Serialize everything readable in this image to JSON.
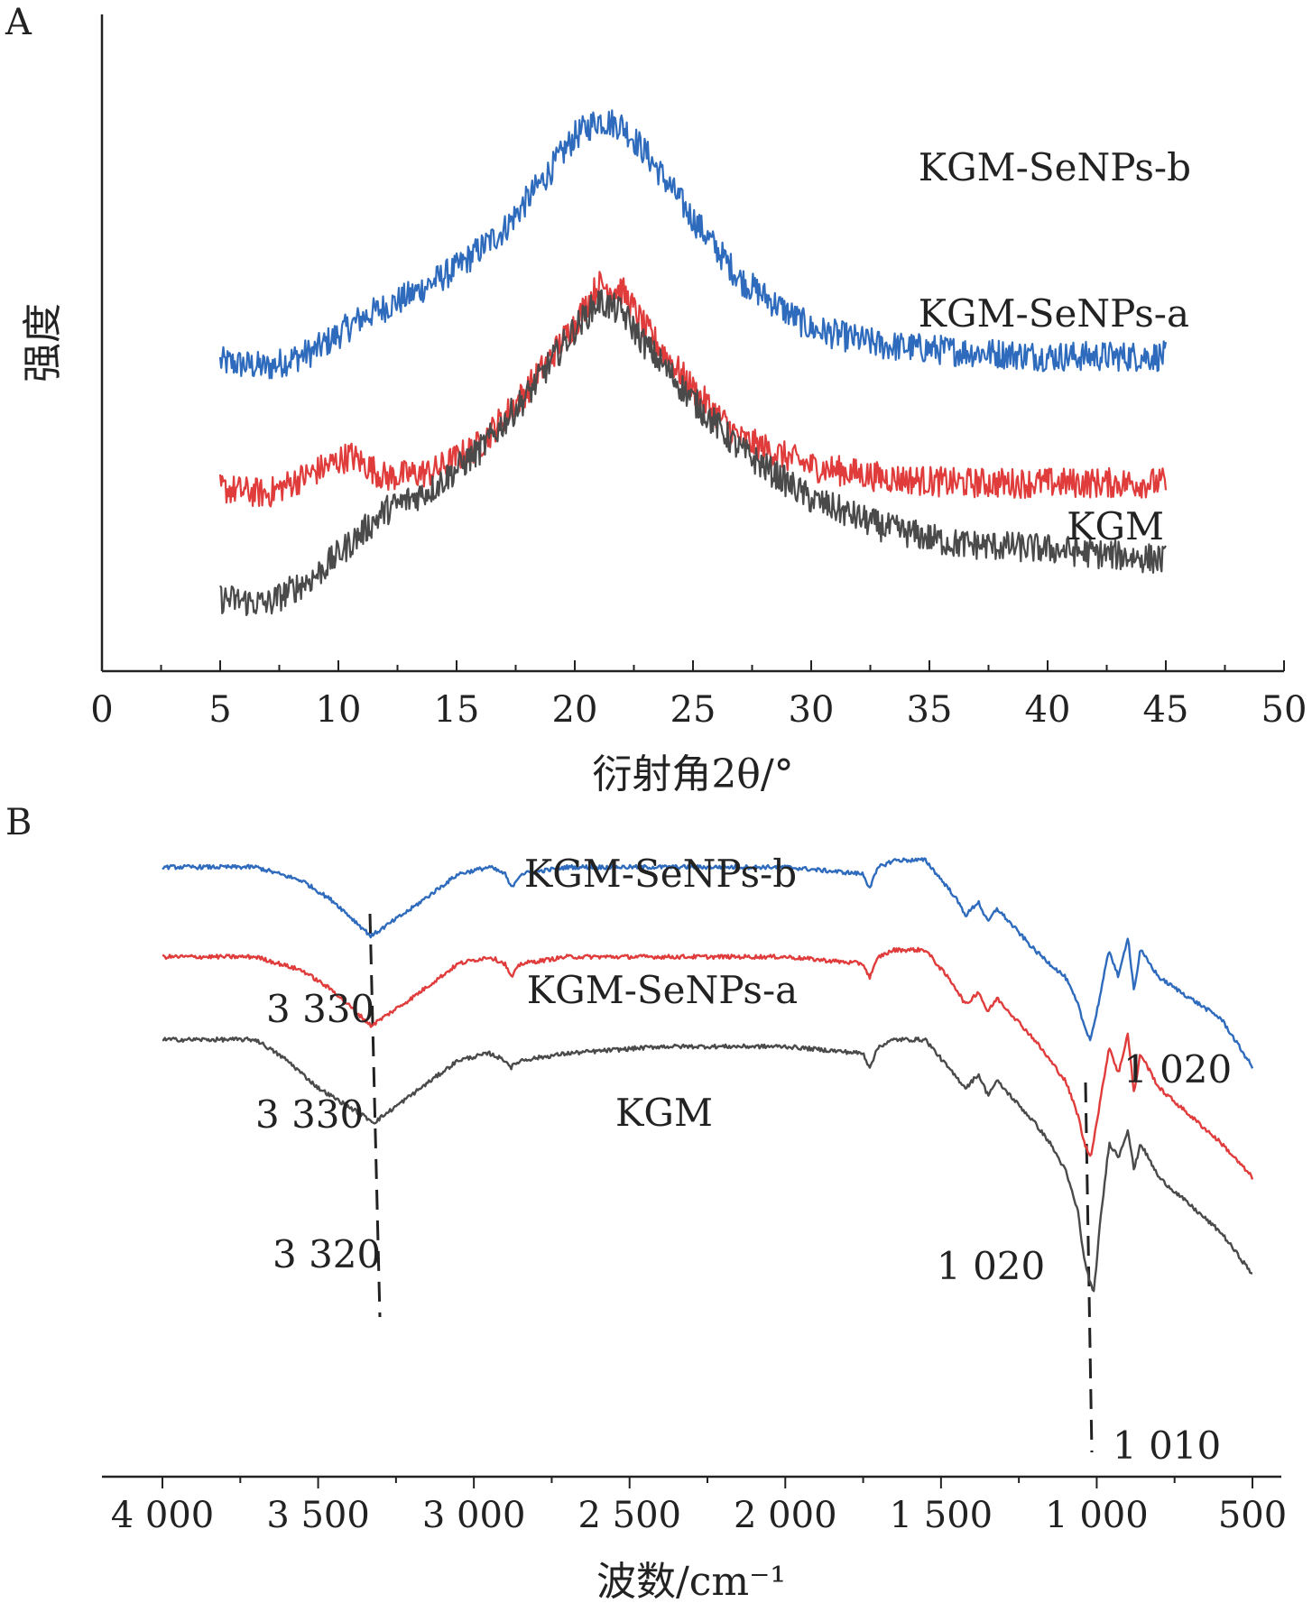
{
  "chart_data": [
    {
      "panel": "A",
      "type": "line",
      "xlabel": "衍射角2θ/°",
      "ylabel": "强度",
      "xlim": [
        0,
        50
      ],
      "xticks": [
        "0",
        "5",
        "10",
        "15",
        "20",
        "25",
        "30",
        "35",
        "40",
        "45",
        "50"
      ],
      "series": [
        {
          "name": "KGM-SeNPs-b",
          "color": "#2f6bbd",
          "x": [
            5,
            7,
            9,
            11,
            13,
            15,
            17,
            19,
            20,
            21,
            22,
            23,
            25,
            27,
            30,
            33,
            36,
            40,
            45
          ],
          "y": [
            0.49,
            0.48,
            0.51,
            0.57,
            0.61,
            0.66,
            0.73,
            0.84,
            0.9,
            0.93,
            0.92,
            0.87,
            0.75,
            0.64,
            0.55,
            0.52,
            0.51,
            0.5,
            0.5
          ]
        },
        {
          "name": "KGM-SeNPs-a",
          "color": "#e03c3c",
          "x": [
            5,
            7,
            9,
            10.5,
            12,
            14,
            16,
            18,
            20,
            21,
            22,
            23,
            25,
            27,
            30,
            33,
            36,
            40,
            45
          ],
          "y": [
            0.26,
            0.25,
            0.29,
            0.32,
            0.28,
            0.29,
            0.34,
            0.44,
            0.56,
            0.63,
            0.62,
            0.55,
            0.44,
            0.35,
            0.3,
            0.28,
            0.27,
            0.27,
            0.27
          ]
        },
        {
          "name": "KGM",
          "color": "#4a4a4a",
          "x": [
            5,
            7,
            9,
            11,
            12,
            14,
            16,
            18,
            20,
            21,
            22,
            23,
            25,
            27,
            30,
            33,
            36,
            40,
            45
          ],
          "y": [
            0.06,
            0.05,
            0.1,
            0.18,
            0.22,
            0.26,
            0.33,
            0.43,
            0.55,
            0.6,
            0.58,
            0.52,
            0.42,
            0.33,
            0.24,
            0.19,
            0.16,
            0.15,
            0.13
          ]
        }
      ],
      "series_labels": [
        "KGM-SeNPs-b",
        "KGM-SeNPs-a",
        "KGM"
      ]
    },
    {
      "panel": "B",
      "type": "line",
      "xlabel": "波数/cm⁻¹",
      "xlim": [
        4000,
        500
      ],
      "xticks": [
        "4 000",
        "3 500",
        "3 000",
        "2 500",
        "2 000",
        "1 500",
        "1 000",
        "500"
      ],
      "series": [
        {
          "name": "KGM-SeNPs-b",
          "color": "#2f6bbd",
          "x": [
            4000,
            3700,
            3550,
            3450,
            3330,
            3200,
            3050,
            2950,
            2900,
            2880,
            2850,
            2700,
            2400,
            2000,
            1750,
            1730,
            1700,
            1650,
            1550,
            1460,
            1420,
            1380,
            1350,
            1320,
            1260,
            1200,
            1150,
            1100,
            1060,
            1040,
            1020,
            1000,
            960,
            930,
            900,
            880,
            860,
            800,
            700,
            600,
            500
          ],
          "y": [
            0.92,
            0.92,
            0.9,
            0.87,
            0.82,
            0.86,
            0.91,
            0.92,
            0.91,
            0.89,
            0.91,
            0.92,
            0.92,
            0.92,
            0.91,
            0.89,
            0.92,
            0.93,
            0.93,
            0.88,
            0.85,
            0.87,
            0.84,
            0.86,
            0.83,
            0.8,
            0.78,
            0.76,
            0.72,
            0.69,
            0.67,
            0.71,
            0.8,
            0.76,
            0.82,
            0.74,
            0.8,
            0.76,
            0.73,
            0.7,
            0.63
          ]
        },
        {
          "name": "KGM-SeNPs-a",
          "color": "#e03c3c",
          "x": [
            4000,
            3700,
            3550,
            3450,
            3330,
            3200,
            3050,
            2950,
            2900,
            2880,
            2850,
            2700,
            2400,
            2000,
            1750,
            1730,
            1700,
            1650,
            1550,
            1460,
            1420,
            1380,
            1350,
            1320,
            1260,
            1200,
            1150,
            1100,
            1060,
            1040,
            1020,
            1000,
            960,
            930,
            900,
            880,
            860,
            800,
            700,
            600,
            500
          ],
          "y": [
            0.79,
            0.79,
            0.77,
            0.74,
            0.69,
            0.73,
            0.78,
            0.79,
            0.78,
            0.76,
            0.78,
            0.79,
            0.79,
            0.79,
            0.78,
            0.76,
            0.79,
            0.8,
            0.8,
            0.75,
            0.72,
            0.74,
            0.71,
            0.73,
            0.7,
            0.67,
            0.64,
            0.61,
            0.56,
            0.52,
            0.5,
            0.55,
            0.66,
            0.62,
            0.68,
            0.59,
            0.65,
            0.6,
            0.56,
            0.52,
            0.47
          ]
        },
        {
          "name": "KGM",
          "color": "#4a4a4a",
          "x": [
            4000,
            3700,
            3600,
            3500,
            3320,
            3200,
            3050,
            2950,
            2900,
            2880,
            2850,
            2700,
            2400,
            2000,
            1750,
            1730,
            1700,
            1650,
            1550,
            1460,
            1420,
            1380,
            1350,
            1320,
            1260,
            1200,
            1150,
            1100,
            1060,
            1040,
            1010,
            990,
            960,
            930,
            900,
            880,
            860,
            800,
            700,
            600,
            500
          ],
          "y": [
            0.67,
            0.67,
            0.64,
            0.6,
            0.55,
            0.59,
            0.64,
            0.65,
            0.64,
            0.63,
            0.64,
            0.65,
            0.66,
            0.66,
            0.65,
            0.63,
            0.66,
            0.67,
            0.67,
            0.62,
            0.6,
            0.62,
            0.59,
            0.61,
            0.58,
            0.55,
            0.52,
            0.48,
            0.42,
            0.35,
            0.3,
            0.4,
            0.52,
            0.5,
            0.54,
            0.48,
            0.52,
            0.47,
            0.43,
            0.39,
            0.33
          ]
        }
      ],
      "series_labels": [
        "KGM-SeNPs-b",
        "KGM-SeNPs-a",
        "KGM"
      ],
      "annotations": [
        "3 330",
        "3 330",
        "3 320",
        "1 020",
        "1 020",
        "1 010"
      ]
    }
  ],
  "panel_labels": [
    "A",
    "B"
  ]
}
